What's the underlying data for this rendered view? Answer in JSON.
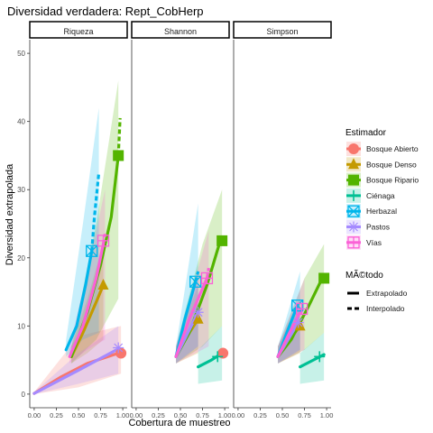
{
  "chart_data": {
    "type": "line",
    "title": "Diversidad verdadera: Rept_CobHerp",
    "xlabel": "Cobertura de muestreo",
    "ylabel": "Diversidad extrapolada",
    "xlim": [
      -0.05,
      1.05
    ],
    "ylim": [
      -2,
      52
    ],
    "x_ticks": [
      0.0,
      0.25,
      0.5,
      0.75,
      1.0
    ],
    "x_tick_labels": [
      "0.00",
      "0.25",
      "0.50",
      "0.75",
      "1.00"
    ],
    "y_ticks": [
      0,
      10,
      20,
      30,
      40,
      50
    ],
    "y_tick_labels": [
      "0",
      "10",
      "20",
      "30",
      "40",
      "50"
    ],
    "grid": false,
    "legend_placement": "right",
    "legend": {
      "title": "Estimador",
      "method_title": "MÃ©todo",
      "methods": [
        {
          "name": "Extrapolado",
          "style": "solid"
        },
        {
          "name": "Interpolado",
          "style": "dashed"
        }
      ]
    },
    "facets": [
      {
        "label": "Riqueza",
        "series": [
          {
            "name": "Bosque Abierto",
            "color": "#F8766D",
            "marker": "circle",
            "interp": [
              [
                0.0,
                0.1
              ],
              [
                0.3,
                2.5
              ],
              [
                0.6,
                4.5
              ],
              [
                0.95,
                6.0
              ]
            ],
            "extrap": [],
            "observed": [
              0.98,
              6.0
            ],
            "band": [
              [
                0.0,
                0.0,
                0.3
              ],
              [
                0.5,
                1.0,
                8.5
              ],
              [
                0.98,
                3.0,
                10.0
              ]
            ]
          },
          {
            "name": "Bosque Denso",
            "color": "#C49A00",
            "marker": "triangle",
            "interp": [
              [
                0.42,
                5.5
              ],
              [
                0.55,
                9.0
              ],
              [
                0.7,
                13.5
              ],
              [
                0.78,
                16.0
              ]
            ],
            "extrap": [],
            "observed": [
              0.78,
              16.0
            ],
            "band": [
              [
                0.42,
                4.5,
                7.0
              ],
              [
                0.6,
                6.0,
                14.0
              ],
              [
                0.78,
                8.0,
                22.0
              ]
            ]
          },
          {
            "name": "Bosque Ripario",
            "color": "#53B400",
            "marker": "square",
            "interp": [
              [
                0.42,
                5.5
              ],
              [
                0.6,
                12.0
              ],
              [
                0.75,
                19.0
              ],
              [
                0.87,
                26.0
              ],
              [
                0.95,
                35.0
              ]
            ],
            "extrap": [
              [
                0.95,
                35.0
              ],
              [
                0.97,
                40.5
              ]
            ],
            "observed": [
              0.95,
              35.0
            ],
            "band": [
              [
                0.42,
                4.5,
                7.0
              ],
              [
                0.7,
                8.0,
                25.0
              ],
              [
                0.95,
                14.0,
                46.0
              ]
            ]
          },
          {
            "name": "Ciénaga",
            "color": "#00C094",
            "marker": "cross",
            "interp": [],
            "extrap": [],
            "observed": null,
            "band": []
          },
          {
            "name": "Herbazal",
            "color": "#00B6EB",
            "marker": "boxx",
            "interp": [
              [
                0.36,
                6.5
              ],
              [
                0.48,
                10.0
              ],
              [
                0.58,
                16.0
              ],
              [
                0.65,
                21.0
              ]
            ],
            "extrap": [
              [
                0.65,
                21.0
              ],
              [
                0.68,
                26.0
              ],
              [
                0.73,
                32.5
              ]
            ],
            "observed": [
              0.65,
              21.0
            ],
            "band": [
              [
                0.36,
                5.5,
                8.0
              ],
              [
                0.55,
                8.0,
                25.0
              ],
              [
                0.73,
                9.0,
                42.0
              ]
            ]
          },
          {
            "name": "Pastos",
            "color": "#A58AFF",
            "marker": "asterisk",
            "interp": [
              [
                0.0,
                0.1
              ],
              [
                0.5,
                3.5
              ],
              [
                0.93,
                6.5
              ]
            ],
            "extrap": [],
            "observed": [
              0.95,
              6.8
            ],
            "band": [
              [
                0.0,
                0.0,
                0.3
              ],
              [
                0.5,
                1.5,
                6.0
              ],
              [
                0.95,
                3.0,
                10.0
              ]
            ]
          },
          {
            "name": "Vías",
            "color": "#FB61D7",
            "marker": "boxplus",
            "interp": [
              [
                0.4,
                5.5
              ],
              [
                0.55,
                10.0
              ],
              [
                0.7,
                17.0
              ],
              [
                0.78,
                22.0
              ]
            ],
            "extrap": [
              [
                0.78,
                22.0
              ],
              [
                0.8,
                23.5
              ]
            ],
            "observed": [
              0.78,
              22.5
            ],
            "band": [
              [
                0.4,
                4.5,
                7.0
              ],
              [
                0.6,
                6.5,
                18.0
              ],
              [
                0.8,
                8.0,
                30.0
              ]
            ]
          }
        ]
      },
      {
        "label": "Shannon",
        "series": [
          {
            "name": "Bosque Abierto",
            "color": "#F8766D",
            "marker": "circle",
            "interp": [],
            "extrap": [],
            "observed": [
              0.98,
              6.0
            ],
            "band": []
          },
          {
            "name": "Bosque Denso",
            "color": "#C49A00",
            "marker": "triangle",
            "interp": [
              [
                0.45,
                5.5
              ],
              [
                0.55,
                8.0
              ],
              [
                0.7,
                11.0
              ]
            ],
            "extrap": [],
            "observed": [
              0.7,
              11.0
            ],
            "band": [
              [
                0.45,
                4.5,
                7.0
              ],
              [
                0.7,
                6.0,
                16.0
              ]
            ]
          },
          {
            "name": "Bosque Ripario",
            "color": "#53B400",
            "marker": "square",
            "interp": [
              [
                0.45,
                5.5
              ],
              [
                0.6,
                9.0
              ],
              [
                0.8,
                16.0
              ],
              [
                0.95,
                22.5
              ]
            ],
            "extrap": [],
            "observed": [
              0.97,
              22.5
            ],
            "band": [
              [
                0.45,
                4.5,
                7.0
              ],
              [
                0.75,
                7.0,
                22.0
              ],
              [
                0.97,
                10.0,
                30.0
              ]
            ]
          },
          {
            "name": "Ciénaga",
            "color": "#00C094",
            "marker": "cross",
            "interp": [
              [
                0.7,
                4.0
              ],
              [
                0.85,
                5.0
              ],
              [
                0.97,
                6.0
              ]
            ],
            "extrap": [],
            "observed": [
              0.92,
              5.5
            ],
            "band": [
              [
                0.7,
                1.5,
                6.5
              ],
              [
                0.97,
                2.0,
                10.0
              ]
            ]
          },
          {
            "name": "Herbazal",
            "color": "#00B6EB",
            "marker": "boxx",
            "interp": [
              [
                0.45,
                5.5
              ],
              [
                0.55,
                11.0
              ],
              [
                0.67,
                16.5
              ]
            ],
            "extrap": [
              [
                0.67,
                16.5
              ],
              [
                0.7,
                18.0
              ]
            ],
            "observed": [
              0.67,
              16.5
            ],
            "band": [
              [
                0.45,
                4.5,
                7.0
              ],
              [
                0.7,
                7.0,
                28.0
              ]
            ]
          },
          {
            "name": "Pastos",
            "color": "#A58AFF",
            "marker": "asterisk",
            "interp": [
              [
                0.45,
                5.5
              ],
              [
                0.7,
                12.0
              ]
            ],
            "extrap": [],
            "observed": [
              0.7,
              12.0
            ],
            "band": [
              [
                0.45,
                4.5,
                7.0
              ],
              [
                0.7,
                7.0,
                18.0
              ]
            ]
          },
          {
            "name": "Vías",
            "color": "#FB61D7",
            "marker": "boxplus",
            "interp": [
              [
                0.45,
                5.5
              ],
              [
                0.6,
                11.0
              ],
              [
                0.8,
                17.0
              ]
            ],
            "extrap": [
              [
                0.8,
                17.0
              ],
              [
                0.82,
                18.5
              ]
            ],
            "observed": [
              0.8,
              17.0
            ],
            "band": [
              [
                0.45,
                4.5,
                7.0
              ],
              [
                0.82,
                7.0,
                24.0
              ]
            ]
          }
        ]
      },
      {
        "label": "Simpson",
        "series": [
          {
            "name": "Bosque Abierto",
            "color": "#F8766D",
            "marker": "circle",
            "interp": [],
            "extrap": [],
            "observed": null,
            "band": []
          },
          {
            "name": "Bosque Denso",
            "color": "#C49A00",
            "marker": "triangle",
            "interp": [
              [
                0.45,
                5.5
              ],
              [
                0.55,
                7.5
              ],
              [
                0.7,
                10.0
              ]
            ],
            "extrap": [],
            "observed": [
              0.7,
              10.0
            ],
            "band": [
              [
                0.45,
                4.5,
                7.0
              ],
              [
                0.7,
                6.0,
                14.0
              ]
            ]
          },
          {
            "name": "Bosque Ripario",
            "color": "#53B400",
            "marker": "square",
            "interp": [
              [
                0.45,
                5.5
              ],
              [
                0.6,
                8.0
              ],
              [
                0.8,
                13.0
              ],
              [
                0.95,
                17.0
              ]
            ],
            "extrap": [],
            "observed": [
              0.97,
              17.0
            ],
            "band": [
              [
                0.45,
                4.5,
                7.0
              ],
              [
                0.75,
                6.5,
                17.0
              ],
              [
                0.97,
                9.0,
                22.0
              ]
            ]
          },
          {
            "name": "Ciénaga",
            "color": "#00C094",
            "marker": "cross",
            "interp": [
              [
                0.7,
                4.0
              ],
              [
                0.85,
                5.0
              ],
              [
                0.97,
                5.8
              ]
            ],
            "extrap": [],
            "observed": [
              0.92,
              5.5
            ],
            "band": [
              [
                0.7,
                1.5,
                6.0
              ],
              [
                0.97,
                2.0,
                9.0
              ]
            ]
          },
          {
            "name": "Herbazal",
            "color": "#00B6EB",
            "marker": "boxx",
            "interp": [
              [
                0.45,
                5.5
              ],
              [
                0.55,
                9.0
              ],
              [
                0.67,
                13.0
              ]
            ],
            "extrap": [],
            "observed": [
              0.67,
              13.0
            ],
            "band": [
              [
                0.45,
                4.5,
                7.0
              ],
              [
                0.7,
                6.5,
                18.0
              ]
            ]
          },
          {
            "name": "Pastos",
            "color": "#A58AFF",
            "marker": "asterisk",
            "interp": [
              [
                0.45,
                5.5
              ],
              [
                0.68,
                10.5
              ]
            ],
            "extrap": [],
            "observed": [
              0.68,
              10.5
            ],
            "band": [
              [
                0.45,
                4.5,
                7.0
              ],
              [
                0.7,
                6.5,
                14.0
              ]
            ]
          },
          {
            "name": "Vías",
            "color": "#FB61D7",
            "marker": "boxplus",
            "interp": [
              [
                0.45,
                5.5
              ],
              [
                0.6,
                9.5
              ],
              [
                0.72,
                12.5
              ]
            ],
            "extrap": [],
            "observed": [
              0.72,
              12.5
            ],
            "band": [
              [
                0.45,
                4.5,
                7.0
              ],
              [
                0.75,
                6.5,
                17.0
              ]
            ]
          }
        ]
      }
    ]
  }
}
